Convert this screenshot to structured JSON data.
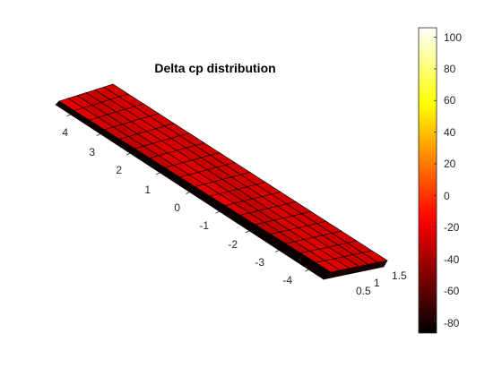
{
  "chart_data": {
    "type": "surface",
    "title": "Delta cp distribution",
    "x_ticks": [
      "0.5",
      "1",
      "1.5"
    ],
    "y_ticks": [
      "4",
      "3",
      "2",
      "1",
      "0",
      "-1",
      "-2",
      "-3",
      "-4"
    ],
    "colorbar": {
      "ticks": [
        "100",
        "80",
        "60",
        "40",
        "20",
        "0",
        "-20",
        "-40",
        "-60",
        "-80"
      ],
      "tick_values": [
        100,
        80,
        60,
        40,
        20,
        0,
        -20,
        -40,
        -60,
        -80
      ],
      "range": [
        -87,
        106
      ],
      "colormap": "hot"
    },
    "x_range": [
      0,
      1.5
    ],
    "y_range": [
      -4.5,
      4.5
    ],
    "surface_value_typical": -28,
    "underside_value_typical": -85,
    "grid": false
  }
}
